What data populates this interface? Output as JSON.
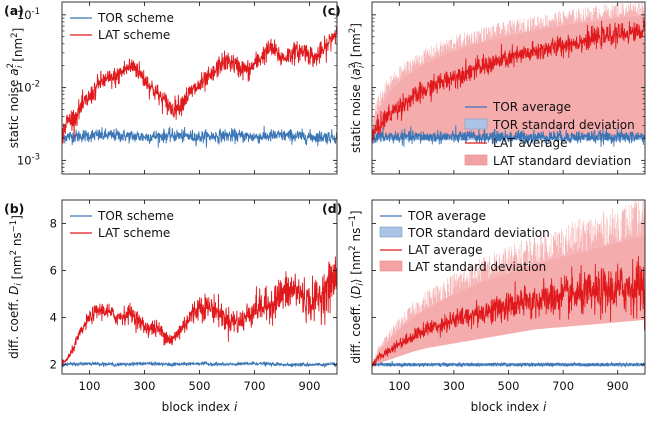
{
  "chart_data": [
    {
      "panel": "(a)",
      "type": "line",
      "ylabel": "static noise a_i^2 [nm^2]",
      "ylabel_parts": {
        "main": "static noise ",
        "var": "a",
        "sub": "i",
        "sup": "2",
        "unit": " [nm",
        "unit_sup": "2",
        "unit_end": "]"
      },
      "yscale": "log",
      "xlim": [
        0,
        1000
      ],
      "ylim": [
        0.00065,
        0.15
      ],
      "yticks": [
        0.001,
        0.01,
        0.1
      ],
      "yticklabels": [
        "10",
        "10",
        "10"
      ],
      "ytick_exp": [
        "-3",
        "-2",
        "-1"
      ],
      "legend": "top-left",
      "series": [
        {
          "name": "TOR scheme",
          "color": "#3a75b5",
          "kind": "line",
          "x": [
            0,
            100,
            200,
            300,
            400,
            500,
            600,
            700,
            800,
            900,
            1000
          ],
          "values": [
            0.0021,
            0.0022,
            0.0022,
            0.0021,
            0.0022,
            0.0021,
            0.0022,
            0.0021,
            0.0022,
            0.0021,
            0.0021
          ]
        },
        {
          "name": "LAT scheme",
          "color": "#e0191c",
          "kind": "line",
          "x": [
            0,
            20,
            50,
            80,
            110,
            140,
            170,
            200,
            230,
            260,
            300,
            330,
            360,
            400,
            430,
            460,
            490,
            520,
            550,
            580,
            610,
            640,
            680,
            720,
            760,
            800,
            840,
            880,
            920,
            960,
            1000
          ],
          "values": [
            0.0021,
            0.0035,
            0.004,
            0.006,
            0.008,
            0.012,
            0.013,
            0.014,
            0.018,
            0.02,
            0.013,
            0.0095,
            0.0072,
            0.005,
            0.0058,
            0.008,
            0.01,
            0.012,
            0.015,
            0.022,
            0.023,
            0.019,
            0.017,
            0.025,
            0.035,
            0.025,
            0.03,
            0.032,
            0.025,
            0.035,
            0.06
          ]
        }
      ]
    },
    {
      "panel": "(b)",
      "type": "line",
      "ylabel": "diff. coeff. D_i [nm^2 ns^-1]",
      "ylabel_parts": {
        "main": "diff. coeff. ",
        "var": "D",
        "sub": "i",
        "sup": "",
        "unit": " [nm",
        "unit_sup": "2",
        "unit_mid": " ns",
        "unit_sup2": "−1",
        "unit_end": "]"
      },
      "yscale": "linear",
      "xlim": [
        0,
        1000
      ],
      "ylim": [
        1.6,
        9.0
      ],
      "yticks": [
        2,
        4,
        6,
        8
      ],
      "yticklabels": [
        "2",
        "4",
        "6",
        "8"
      ],
      "xticks": [
        100,
        300,
        500,
        700,
        900
      ],
      "xticklabels": [
        "100",
        "300",
        "500",
        "700",
        "900"
      ],
      "xlabel": "block index i",
      "legend": "top-left",
      "series": [
        {
          "name": "TOR scheme",
          "color": "#3a75b5",
          "kind": "line",
          "x": [
            0,
            100,
            200,
            300,
            400,
            500,
            600,
            700,
            800,
            900,
            1000
          ],
          "values": [
            2.0,
            2.05,
            2.0,
            2.05,
            2.0,
            2.05,
            2.0,
            2.05,
            2.0,
            2.0,
            2.0
          ]
        },
        {
          "name": "LAT scheme",
          "color": "#e0191c",
          "kind": "line",
          "x": [
            0,
            30,
            60,
            100,
            130,
            160,
            200,
            250,
            300,
            350,
            400,
            450,
            500,
            550,
            600,
            650,
            700,
            750,
            800,
            850,
            900,
            950,
            1000
          ],
          "values": [
            2.0,
            2.4,
            3.2,
            4.0,
            4.3,
            4.3,
            4.0,
            4.2,
            3.6,
            3.5,
            3.0,
            3.8,
            4.5,
            4.4,
            3.9,
            3.8,
            4.4,
            4.5,
            5.0,
            5.2,
            4.6,
            5.0,
            5.8
          ]
        }
      ]
    },
    {
      "panel": "(c)",
      "type": "line",
      "ylabel": "static noise <a_i^2> [nm^2]",
      "ylabel_parts": {
        "main": "static noise ",
        "var": "a",
        "sub": "i",
        "sup": "2",
        "unit": " [nm",
        "unit_sup": "2",
        "unit_end": "]",
        "angled": true
      },
      "yscale": "log",
      "xlim": [
        0,
        1000
      ],
      "ylim": [
        0.00065,
        0.15
      ],
      "yticks": [
        0.001,
        0.01,
        0.1
      ],
      "legend": "center-right",
      "series": [
        {
          "name": "TOR average",
          "color": "#3a75b5",
          "kind": "line",
          "x": [
            0,
            200,
            400,
            600,
            800,
            1000
          ],
          "values": [
            0.0021,
            0.0021,
            0.0021,
            0.0021,
            0.0021,
            0.0021
          ]
        },
        {
          "name": "TOR standard deviation",
          "color": "#a9c4e4",
          "kind": "band",
          "x": [
            0,
            200,
            400,
            600,
            800,
            1000
          ],
          "lower": [
            0.0019,
            0.0019,
            0.0019,
            0.0019,
            0.0019,
            0.0019
          ],
          "upper": [
            0.0023,
            0.0023,
            0.0023,
            0.0023,
            0.0023,
            0.0023
          ]
        },
        {
          "name": "LAT average",
          "color": "#e0191c",
          "kind": "line",
          "x": [
            0,
            20,
            50,
            100,
            150,
            200,
            300,
            400,
            500,
            600,
            700,
            800,
            900,
            1000
          ],
          "values": [
            0.0021,
            0.0028,
            0.0038,
            0.0055,
            0.0072,
            0.0093,
            0.014,
            0.019,
            0.025,
            0.031,
            0.038,
            0.046,
            0.054,
            0.06
          ]
        },
        {
          "name": "LAT standard deviation",
          "color": "#f4a3a4",
          "kind": "band",
          "x": [
            0,
            20,
            50,
            100,
            150,
            200,
            300,
            400,
            500,
            600,
            700,
            800,
            900,
            1000
          ],
          "lower": [
            0.0021,
            0.0021,
            0.0021,
            0.0021,
            0.0021,
            0.0021,
            0.0021,
            0.0021,
            0.0021,
            0.0021,
            0.0021,
            0.0021,
            0.0021,
            0.0021
          ],
          "upper": [
            0.0021,
            0.0045,
            0.0075,
            0.012,
            0.017,
            0.022,
            0.032,
            0.042,
            0.052,
            0.062,
            0.072,
            0.082,
            0.092,
            0.1
          ]
        }
      ]
    },
    {
      "panel": "(d)",
      "type": "line",
      "ylabel": "diff. coeff. <D_i> [nm^2 ns^-1]",
      "ylabel_parts": {
        "main": "diff. coeff. ",
        "var": "D",
        "sub": "i",
        "sup": "",
        "unit": " [nm",
        "unit_sup": "2",
        "unit_mid": " ns",
        "unit_sup2": "−1",
        "unit_end": "]",
        "angled": true
      },
      "yscale": "linear",
      "xlim": [
        0,
        1000
      ],
      "ylim": [
        1.6,
        9.0
      ],
      "yticks": [
        2,
        4,
        6,
        8
      ],
      "xticks": [
        100,
        300,
        500,
        700,
        900
      ],
      "xticklabels": [
        "100",
        "300",
        "500",
        "700",
        "900"
      ],
      "xlabel": "block index i",
      "legend": "top-left",
      "series": [
        {
          "name": "TOR average",
          "color": "#3a75b5",
          "kind": "line",
          "x": [
            0,
            200,
            400,
            600,
            800,
            1000
          ],
          "values": [
            2.0,
            2.0,
            2.0,
            2.0,
            2.0,
            2.0
          ]
        },
        {
          "name": "TOR standard deviation",
          "color": "#a9c4e4",
          "kind": "band",
          "x": [
            0,
            200,
            400,
            600,
            800,
            1000
          ],
          "lower": [
            1.93,
            1.93,
            1.93,
            1.93,
            1.93,
            1.93
          ],
          "upper": [
            2.07,
            2.07,
            2.07,
            2.07,
            2.07,
            2.07
          ]
        },
        {
          "name": "LAT average",
          "color": "#e0191c",
          "kind": "line",
          "x": [
            0,
            25,
            50,
            100,
            150,
            200,
            300,
            400,
            500,
            600,
            700,
            800,
            900,
            1000
          ],
          "values": [
            2.0,
            2.3,
            2.5,
            2.9,
            3.2,
            3.5,
            3.9,
            4.2,
            4.5,
            4.7,
            4.9,
            5.0,
            5.2,
            5.4
          ]
        },
        {
          "name": "LAT standard deviation",
          "color": "#f4a3a4",
          "kind": "band",
          "x": [
            0,
            25,
            50,
            100,
            150,
            200,
            300,
            400,
            500,
            600,
            700,
            800,
            900,
            1000
          ],
          "lower": [
            2.0,
            2.05,
            2.15,
            2.35,
            2.55,
            2.7,
            2.9,
            3.1,
            3.3,
            3.5,
            3.6,
            3.7,
            3.8,
            3.9
          ],
          "upper": [
            2.0,
            2.6,
            2.9,
            3.5,
            4.0,
            4.4,
            5.0,
            5.5,
            5.9,
            6.3,
            6.6,
            6.9,
            7.2,
            7.5
          ]
        }
      ]
    }
  ]
}
